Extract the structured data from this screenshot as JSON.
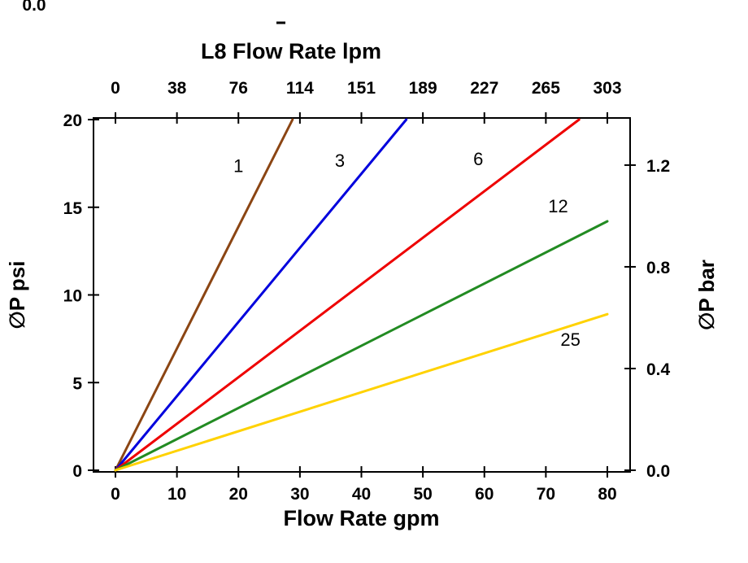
{
  "page": {
    "background": "#ffffff",
    "cropped_top_left_text": "0.0"
  },
  "chart_data": {
    "type": "line",
    "top_axis": {
      "title": "L8 Flow Rate lpm",
      "tick_labels": [
        "0",
        "38",
        "76",
        "114",
        "151",
        "189",
        "227",
        "265",
        "303"
      ]
    },
    "bottom_axis": {
      "title": "Flow Rate gpm",
      "ticks": [
        0,
        10,
        20,
        30,
        40,
        50,
        60,
        70,
        80
      ],
      "tick_labels": [
        "0",
        "10",
        "20",
        "30",
        "40",
        "50",
        "60",
        "70",
        "80"
      ]
    },
    "left_axis": {
      "title": "∅P psi",
      "ticks": [
        0,
        5,
        10,
        15,
        20
      ],
      "tick_labels": [
        "0",
        "5",
        "10",
        "15",
        "20"
      ]
    },
    "right_axis": {
      "title": "∅P bar",
      "ticks_bar": [
        0.0,
        0.4,
        0.8,
        1.2
      ],
      "tick_labels": [
        "0.0",
        "0.4",
        "0.8",
        "1.2"
      ],
      "psi_per_bar": 14.5038
    },
    "xlim": [
      0,
      80
    ],
    "ylim": [
      0,
      20
    ],
    "grid": false,
    "axis_color": "#000000",
    "series": [
      {
        "label": "1",
        "color": "#8B4513",
        "points": [
          [
            0,
            0
          ],
          [
            28.8,
            20
          ]
        ],
        "label_at": [
          20.0,
          17.0
        ]
      },
      {
        "label": "3",
        "color": "#0000DD",
        "points": [
          [
            0,
            0
          ],
          [
            47.3,
            20
          ]
        ],
        "label_at": [
          36.5,
          17.3
        ]
      },
      {
        "label": "6",
        "color": "#EE0000",
        "points": [
          [
            0,
            0
          ],
          [
            75.4,
            20
          ]
        ],
        "label_at": [
          59.0,
          17.4
        ]
      },
      {
        "label": "12",
        "color": "#228B22",
        "points": [
          [
            0,
            0
          ],
          [
            80.0,
            14.2
          ]
        ],
        "label_at": [
          72.0,
          14.7
        ]
      },
      {
        "label": "25",
        "color": "#FFD200",
        "points": [
          [
            0,
            0
          ],
          [
            80.0,
            8.9
          ]
        ],
        "label_at": [
          74.0,
          7.1
        ]
      }
    ]
  }
}
